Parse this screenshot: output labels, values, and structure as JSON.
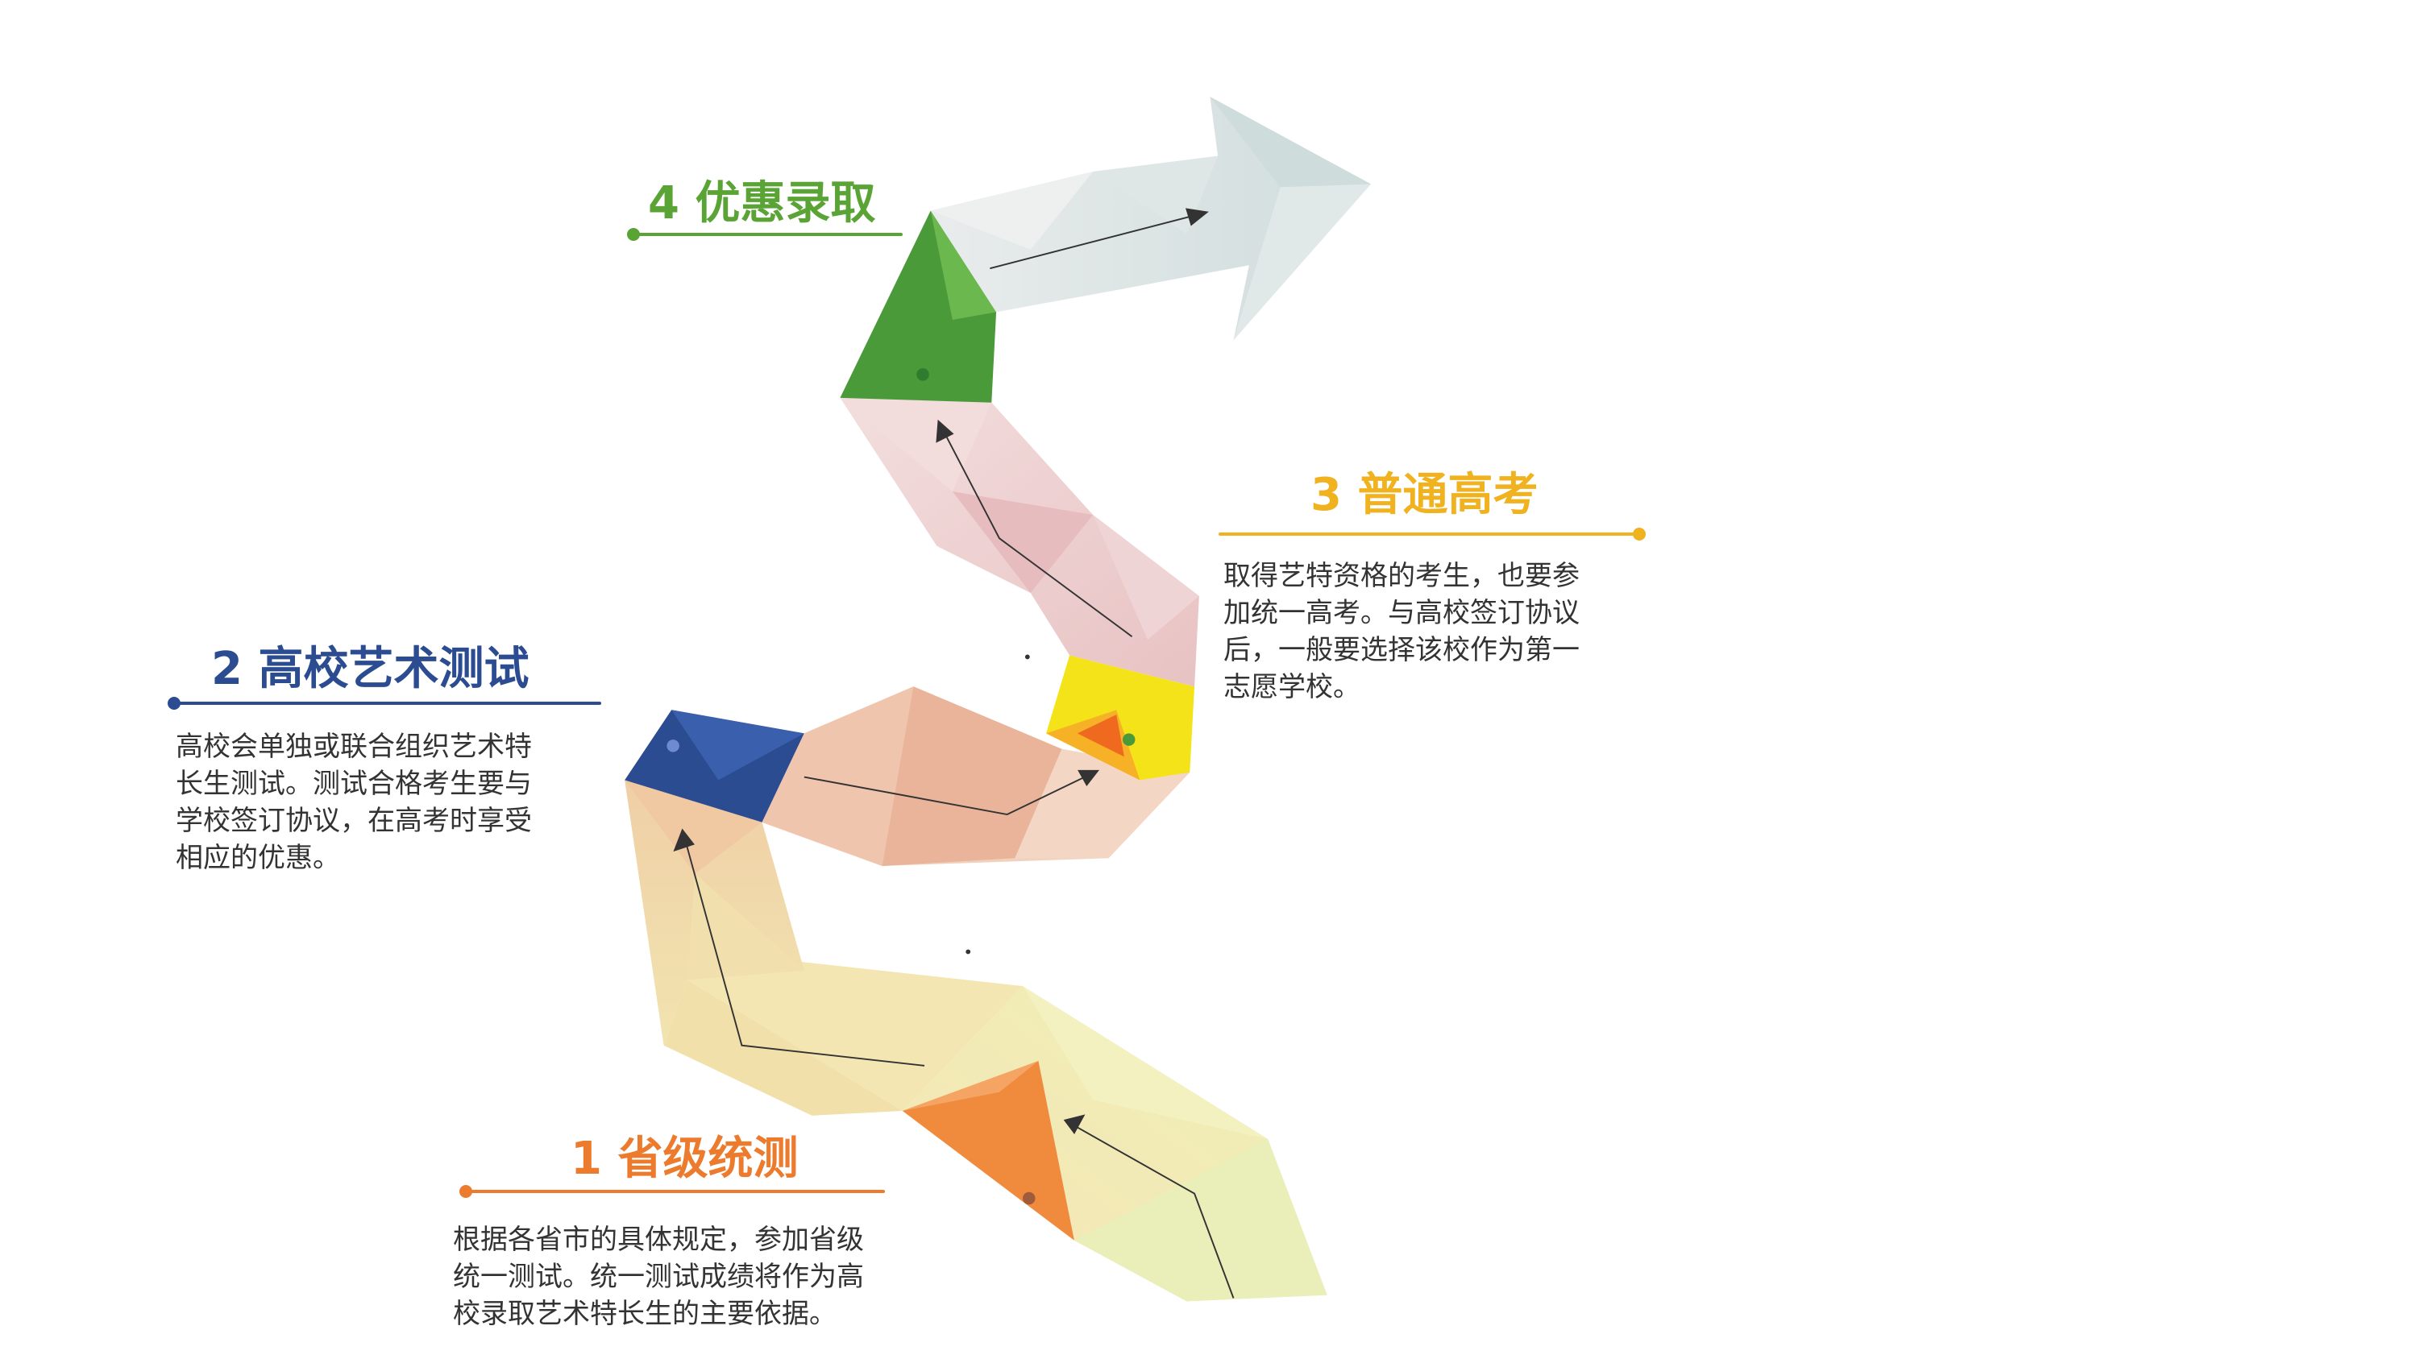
{
  "steps": [
    {
      "number": "1",
      "title": "省级统测",
      "color": "#ec7b2e",
      "lines": [
        "根据各省市的具体规定，参加省级",
        "统一测试。统一测试成绩将作为高",
        "校录取艺术特长生的主要依据。"
      ]
    },
    {
      "number": "2",
      "title": "高校艺术测试",
      "color": "#2c4c92",
      "lines": [
        "高校会单独或联合组织艺术特",
        "长生测试。测试合格考生要与",
        "学校签订协议，在高考时享受",
        "相应的优惠。"
      ]
    },
    {
      "number": "3",
      "title": "普通高考",
      "color": "#f0b21e",
      "lines": [
        "取得艺特资格的考生，也要参",
        "加统一高考。与高校签订协议",
        "后，一般要选择该校作为第一",
        "志愿学校。"
      ]
    },
    {
      "number": "4",
      "title": "优惠录取",
      "color": "#5aa335",
      "lines": []
    }
  ],
  "colors": {
    "path_base": "#eec9a8",
    "blue_facet": "#2c4c92",
    "green_facet": "#4a9a3a",
    "yellow_facet": "#f5e31a",
    "orange_facet": "#f08a3c",
    "arrow_head": "#d7dde2",
    "text": "#333333"
  }
}
